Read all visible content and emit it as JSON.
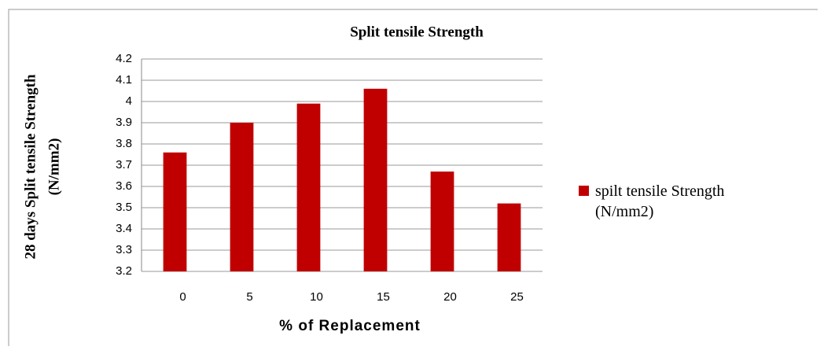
{
  "chart_data": {
    "type": "bar",
    "title": "Split tensile Strength",
    "ylabel": [
      "28 days Split tensile  Strength",
      "(N/mm2)"
    ],
    "xlabel": "% of Replacement",
    "categories": [
      "0",
      "5",
      "10",
      "15",
      "20",
      "25"
    ],
    "series": [
      {
        "name": "spilt tensile Strength (N/mm2)",
        "color": "#c00000",
        "values": [
          3.76,
          3.9,
          3.99,
          4.06,
          3.67,
          3.52
        ]
      }
    ],
    "ylim": [
      3.2,
      4.2
    ],
    "yticks": [
      3.2,
      3.3,
      3.4,
      3.5,
      3.6,
      3.7,
      3.8,
      3.9,
      4,
      4.1,
      4.2
    ],
    "grid": true,
    "legend": "right"
  }
}
